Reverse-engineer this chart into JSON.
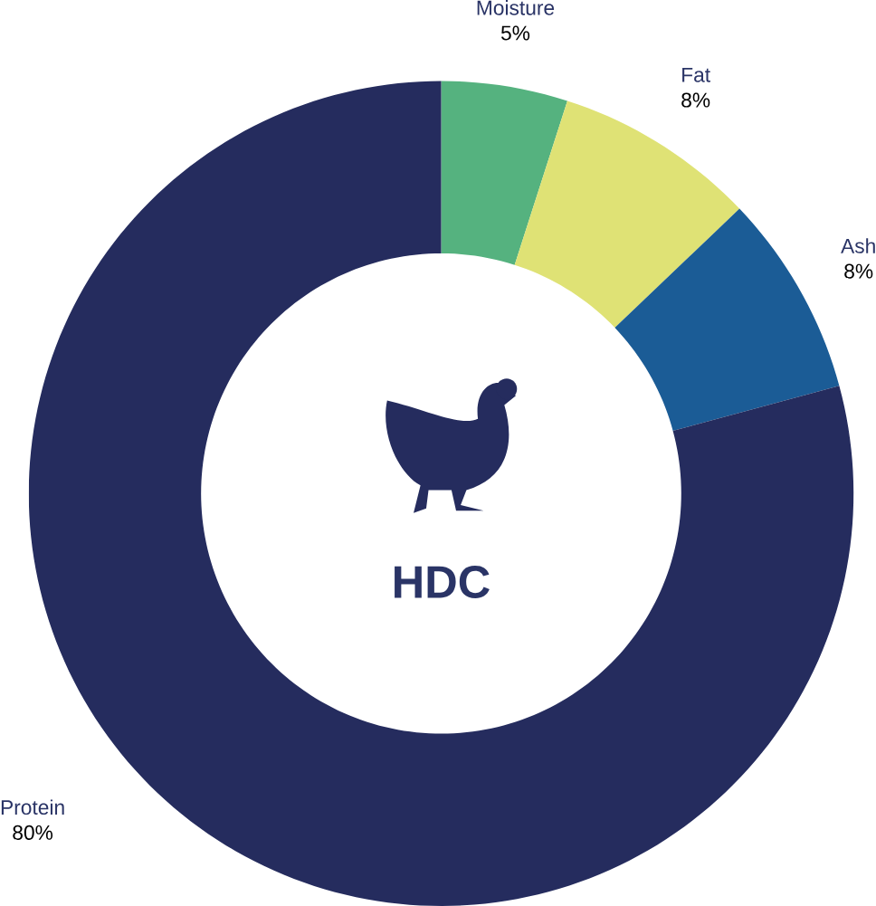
{
  "chart_data": {
    "type": "donut",
    "title": "HDC",
    "categories": [
      "Moisture",
      "Fat",
      "Ash",
      "Protein"
    ],
    "values": [
      5,
      8,
      8,
      80
    ],
    "value_labels": [
      "5%",
      "8%",
      "8%",
      "80%"
    ],
    "colors": [
      "#55b27f",
      "#dfe275",
      "#1b5c96",
      "#252c5e"
    ]
  }
}
